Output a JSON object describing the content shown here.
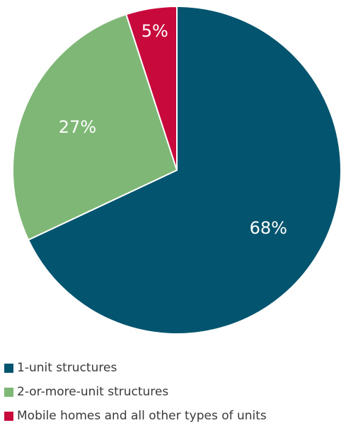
{
  "chart_data": {
    "type": "pie",
    "categories": [
      "1-unit structures",
      "2-or-more-unit structures",
      "Mobile homes and all other types of units"
    ],
    "values": [
      68,
      27,
      5
    ],
    "data_labels": [
      "68%",
      "27%",
      "5%"
    ],
    "colors": [
      "#03546e",
      "#7fb777",
      "#c8093c"
    ],
    "legend_position": "bottom-left"
  }
}
